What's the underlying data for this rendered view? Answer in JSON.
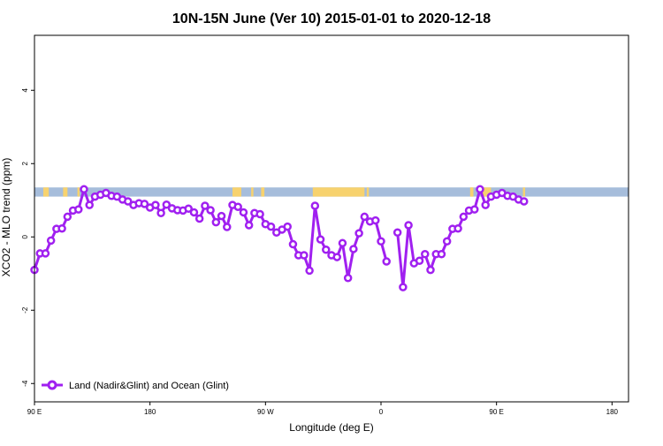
{
  "chart_data": {
    "type": "line",
    "title": "10N-15N June (Ver 10)   2015-01-01 to 2020-12-18",
    "xlabel": "Longitude (deg E)",
    "ylabel": "XCO2 - MLO trend (ppm)",
    "xlim": [
      -90,
      180
    ],
    "ylim": [
      -4.5,
      5.5
    ],
    "x_ticks": [
      {
        "value": -90,
        "label": "90 E"
      },
      {
        "value": -37.5,
        "label": "180"
      },
      {
        "value": 15,
        "label": "90 W"
      },
      {
        "value": 67.5,
        "label": "0"
      },
      {
        "value": 120,
        "label": "90 E"
      },
      {
        "value": 172.5,
        "label": "180"
      }
    ],
    "y_ticks": [
      -4,
      -2,
      0,
      2,
      4
    ],
    "grid": false,
    "legend_position": "bottom-left",
    "background_band": {
      "y_range": [
        1.1,
        1.35
      ],
      "ocean_color": "#A6BDDB",
      "land_color": "#F7D26E"
    },
    "series": [
      {
        "name": "Land (Nadir&Glint) and Ocean (Glint)",
        "color": "#A020F0",
        "points": [
          [
            -90,
            -0.9
          ],
          [
            -87.5,
            -0.45
          ],
          [
            -85,
            -0.45
          ],
          [
            -82.5,
            -0.1
          ],
          [
            -80,
            0.22
          ],
          [
            -77.5,
            0.23
          ],
          [
            -75,
            0.55
          ],
          [
            -72.5,
            0.72
          ],
          [
            -70,
            0.75
          ],
          [
            -67.5,
            1.3
          ],
          [
            -65,
            0.87
          ],
          [
            -62.5,
            1.1
          ],
          [
            -60,
            1.15
          ],
          [
            -57.5,
            1.2
          ],
          [
            -55,
            1.12
          ],
          [
            -52.5,
            1.1
          ],
          [
            -50,
            1.02
          ],
          [
            -47.5,
            0.97
          ],
          [
            -45,
            0.87
          ],
          [
            -42.5,
            0.92
          ],
          [
            -40,
            0.9
          ],
          [
            -37.5,
            0.8
          ],
          [
            -35,
            0.87
          ],
          [
            -32.5,
            0.65
          ],
          [
            -30,
            0.88
          ],
          [
            -27.5,
            0.78
          ],
          [
            -25,
            0.73
          ],
          [
            -22.5,
            0.72
          ],
          [
            -20,
            0.77
          ],
          [
            -17.5,
            0.67
          ],
          [
            -15,
            0.5
          ],
          [
            -12.5,
            0.85
          ],
          [
            -10,
            0.73
          ],
          [
            -7.5,
            0.4
          ],
          [
            -5,
            0.57
          ],
          [
            -2.5,
            0.27
          ],
          [
            0,
            0.87
          ],
          [
            2.5,
            0.82
          ],
          [
            5,
            0.67
          ],
          [
            7.5,
            0.32
          ],
          [
            10,
            0.65
          ],
          [
            12.5,
            0.62
          ],
          [
            15,
            0.35
          ],
          [
            17.5,
            0.28
          ],
          [
            20,
            0.12
          ],
          [
            22.5,
            0.2
          ],
          [
            25,
            0.28
          ],
          [
            27.5,
            -0.2
          ],
          [
            30,
            -0.5
          ],
          [
            32.5,
            -0.5
          ],
          [
            35,
            -0.92
          ],
          [
            37.5,
            0.85
          ],
          [
            40,
            -0.07
          ],
          [
            42.5,
            -0.35
          ],
          [
            45,
            -0.5
          ],
          [
            47.5,
            -0.55
          ],
          [
            50,
            -0.17
          ],
          [
            52.5,
            -1.12
          ],
          [
            55,
            -0.33
          ],
          [
            57.5,
            0.1
          ],
          [
            60,
            0.55
          ],
          [
            62.5,
            0.42
          ],
          [
            65,
            0.45
          ],
          [
            67.5,
            -0.12
          ],
          [
            70,
            -0.67
          ],
          null,
          [
            75,
            0.12
          ],
          [
            77.5,
            -1.37
          ],
          [
            80,
            0.32
          ],
          [
            82.5,
            -0.72
          ],
          [
            85,
            -0.65
          ],
          [
            87.5,
            -0.47
          ],
          [
            90,
            -0.9
          ],
          [
            92.5,
            -0.47
          ],
          [
            95,
            -0.47
          ],
          [
            97.5,
            -0.12
          ],
          [
            100,
            0.22
          ],
          [
            102.5,
            0.23
          ],
          [
            105,
            0.55
          ],
          [
            107.5,
            0.72
          ],
          [
            110,
            0.75
          ],
          [
            112.5,
            1.3
          ],
          [
            115,
            0.87
          ],
          [
            117.5,
            1.1
          ],
          [
            120,
            1.15
          ],
          [
            122.5,
            1.2
          ],
          [
            125,
            1.12
          ],
          [
            127.5,
            1.1
          ],
          [
            130,
            1.02
          ],
          [
            132.5,
            0.97
          ]
        ]
      }
    ]
  }
}
